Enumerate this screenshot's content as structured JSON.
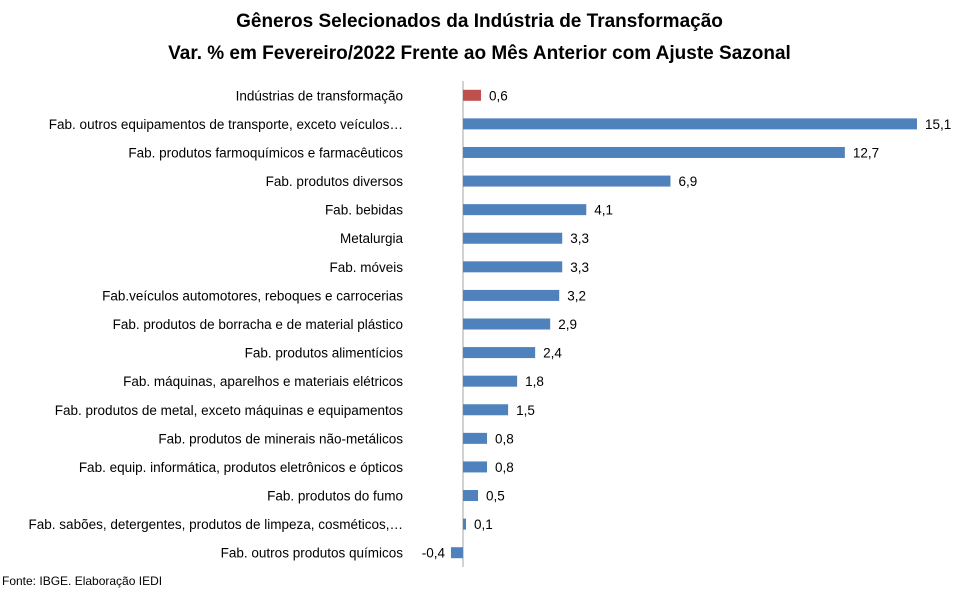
{
  "title": "Gêneros Selecionados da Indústria de Transformação",
  "subtitle": "Var. % em Fevereiro/2022 Frente ao Mês Anterior com Ajuste Sazonal",
  "source": "Fonte: IBGE. Elaboração IEDI",
  "chart_data": {
    "type": "bar",
    "orientation": "horizontal",
    "categories": [
      "Indústrias de transformação",
      "Fab. outros equipamentos de transporte, exceto veículos…",
      "Fab. produtos farmoquímicos e farmacêuticos",
      "Fab. produtos diversos",
      "Fab. bebidas",
      "Metalurgia",
      "Fab. móveis",
      "Fab.veículos automotores, reboques e carrocerias",
      "Fab. produtos de borracha e de material plástico",
      "Fab. produtos alimentícios",
      "Fab. máquinas, aparelhos e materiais elétricos",
      "Fab. produtos de metal, exceto máquinas e equipamentos",
      "Fab. produtos de minerais não-metálicos",
      "Fab. equip. informática, produtos eletrônicos e ópticos",
      "Fab. produtos do fumo",
      "Fab. sabões, detergentes, produtos de limpeza, cosméticos,…",
      "Fab. outros produtos químicos"
    ],
    "values": [
      0.6,
      15.1,
      12.7,
      6.9,
      4.1,
      3.3,
      3.3,
      3.2,
      2.9,
      2.4,
      1.8,
      1.5,
      0.8,
      0.8,
      0.5,
      0.1,
      -0.4
    ],
    "data_labels": [
      "0,6",
      "15,1",
      "12,7",
      "6,9",
      "4,1",
      "3,3",
      "3,3",
      "3,2",
      "2,9",
      "2,4",
      "1,8",
      "1,5",
      "0,8",
      "0,8",
      "0,5",
      "0,1",
      "-0,4"
    ],
    "highlight_index": 0,
    "colors": {
      "highlight": "#C0504D",
      "bar": "#4F81BD",
      "axis": "#A6A6A6"
    },
    "xlim": [
      -0.4,
      15.1
    ],
    "grid": false,
    "legend": "none"
  }
}
